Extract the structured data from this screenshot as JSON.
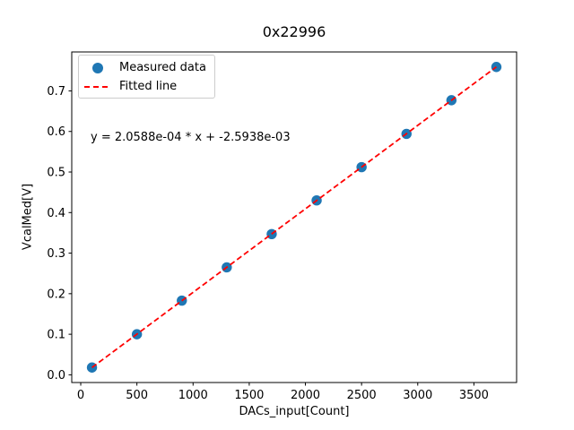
{
  "chart_data": {
    "type": "scatter",
    "title": "0x22996",
    "xlabel": "DACs_input[Count]",
    "ylabel": "VcalMed[V]",
    "x": [
      100,
      500,
      900,
      1300,
      1700,
      2100,
      2500,
      2900,
      3300,
      3700
    ],
    "series": [
      {
        "name": "Measured data",
        "type": "scatter",
        "marker": "circle",
        "color": "#1f77b4",
        "y": [
          0.018,
          0.1,
          0.183,
          0.265,
          0.347,
          0.43,
          0.512,
          0.594,
          0.677,
          0.759
        ]
      },
      {
        "name": "Fitted line",
        "type": "line",
        "linestyle": "dashed",
        "color": "#ff0000",
        "slope": 0.00020588,
        "intercept": -0.0025938,
        "x_range": [
          100,
          3700
        ]
      }
    ],
    "annotation": {
      "text": "y = 2.0588e-04 * x + -2.5938e-03",
      "x": 90,
      "y": 0.585
    },
    "xlim": [
      -80,
      3880
    ],
    "ylim": [
      -0.019,
      0.796
    ],
    "xticks": [
      0,
      500,
      1000,
      1500,
      2000,
      2500,
      3000,
      3500
    ],
    "xtick_labels": [
      "0",
      "500",
      "1000",
      "1500",
      "2000",
      "2500",
      "3000",
      "3500"
    ],
    "yticks": [
      0,
      0.1,
      0.2,
      0.3,
      0.4,
      0.5,
      0.6,
      0.7
    ],
    "ytick_labels": [
      "0.0",
      "0.1",
      "0.2",
      "0.3",
      "0.4",
      "0.5",
      "0.6",
      "0.7"
    ],
    "grid": false,
    "legend_position": "upper left"
  }
}
